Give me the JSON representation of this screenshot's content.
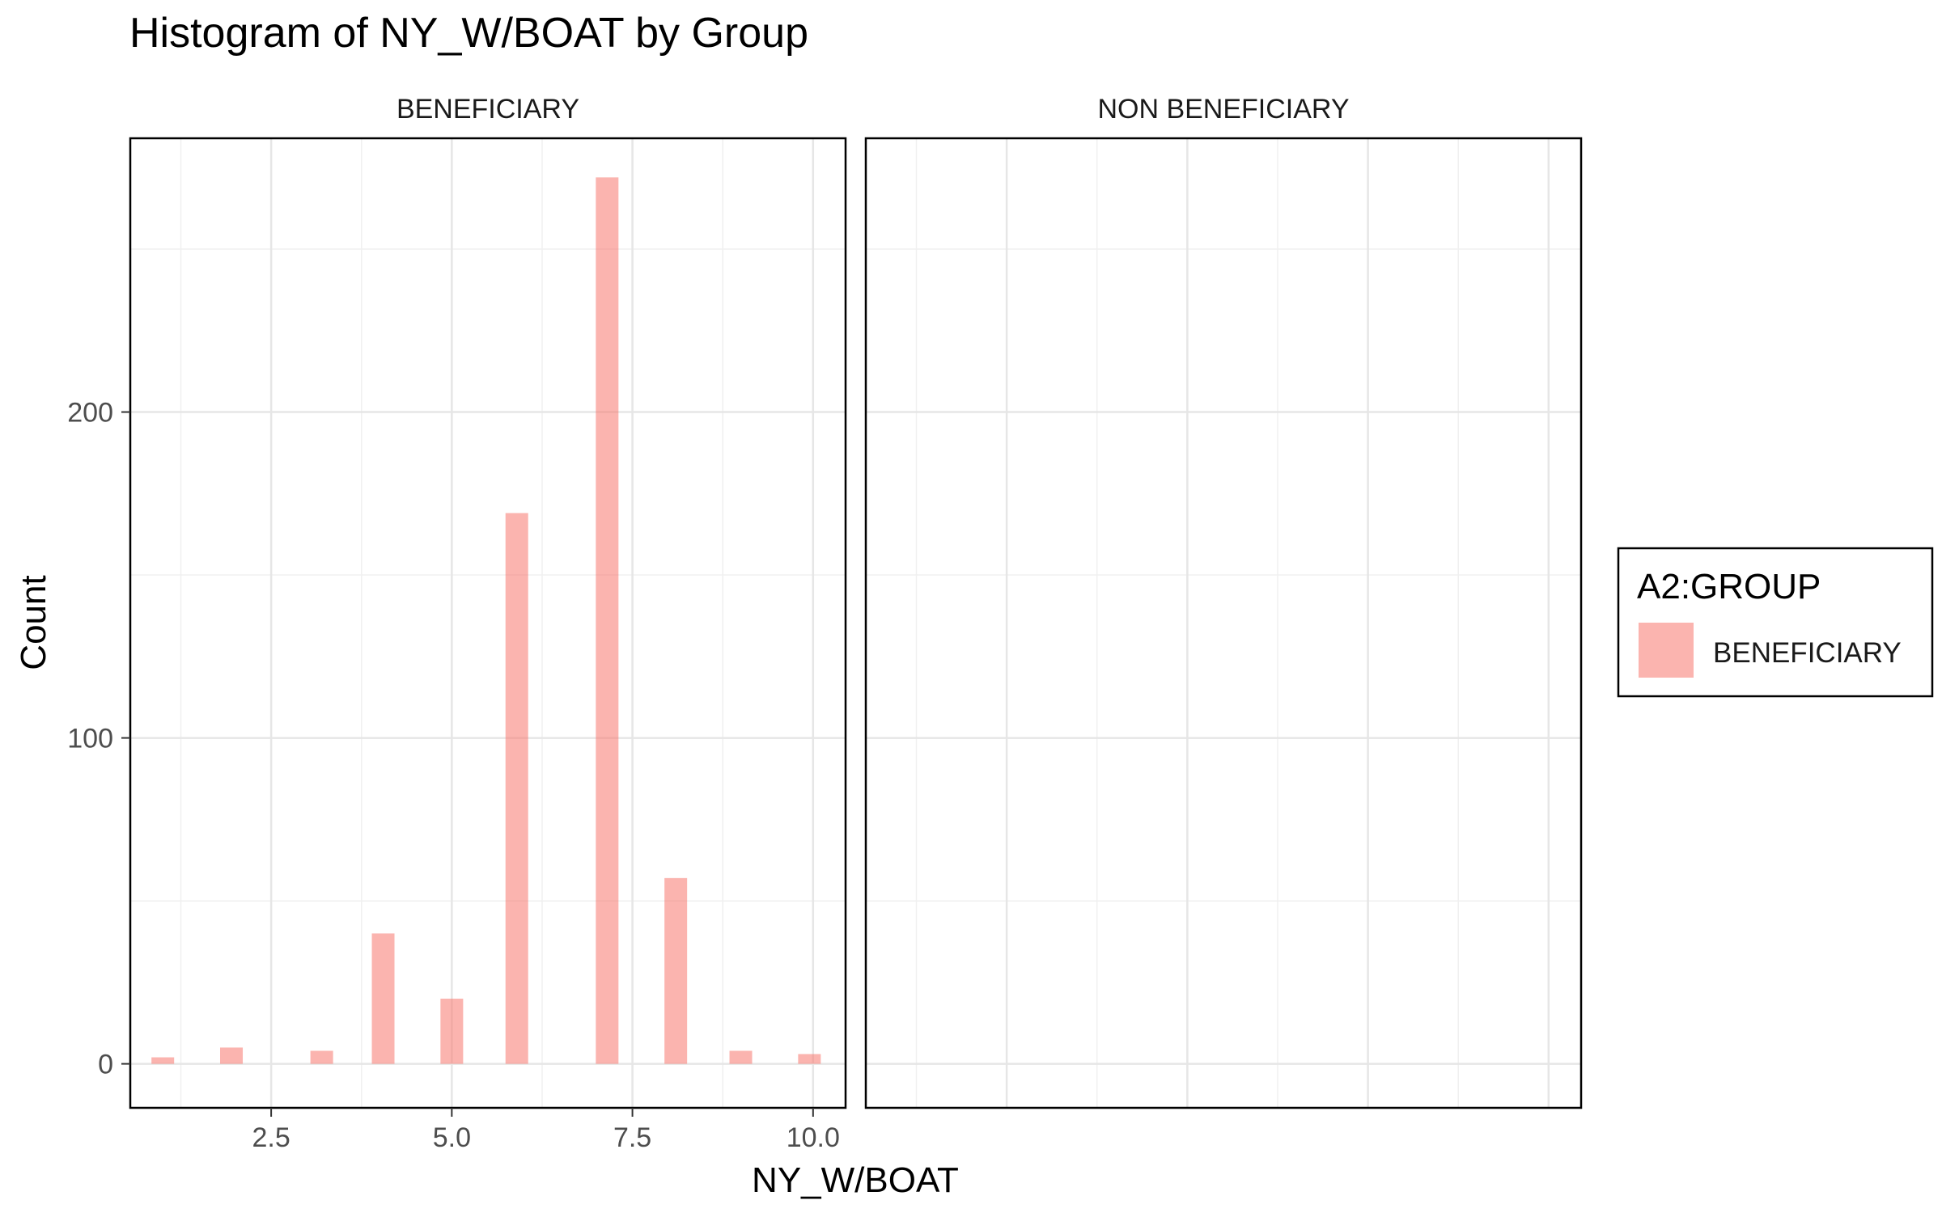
{
  "chart_data": {
    "type": "bar",
    "title": "Histogram of NY_W/BOAT by Group",
    "xlabel": "NY_W/BOAT",
    "ylabel": "Count",
    "xlim": [
      0.55,
      10.45
    ],
    "ylim": [
      -13.5,
      284
    ],
    "x_ticks": [
      2.5,
      5.0,
      7.5,
      10.0
    ],
    "x_tick_labels": [
      "2.5",
      "5.0",
      "7.5",
      "10.0"
    ],
    "y_ticks": [
      0,
      100,
      200
    ],
    "y_tick_labels": [
      "0",
      "100",
      "200"
    ],
    "grid": true,
    "bar_color": "#F8766D",
    "bar_opacity": 0.55,
    "legend": {
      "title": "A2:GROUP",
      "position": "right",
      "entries": [
        "BENEFICIARY"
      ]
    },
    "panels": [
      {
        "label": "BENEFICIARY",
        "bins": [
          {
            "x": 1.0,
            "count": 2
          },
          {
            "x": 1.95,
            "count": 5
          },
          {
            "x": 3.2,
            "count": 4
          },
          {
            "x": 4.05,
            "count": 40
          },
          {
            "x": 5.0,
            "count": 20
          },
          {
            "x": 5.9,
            "count": 169
          },
          {
            "x": 7.15,
            "count": 272
          },
          {
            "x": 8.1,
            "count": 57
          },
          {
            "x": 9.0,
            "count": 4
          },
          {
            "x": 9.95,
            "count": 3
          }
        ]
      },
      {
        "label": "NON BENEFICIARY",
        "bins": []
      }
    ]
  }
}
